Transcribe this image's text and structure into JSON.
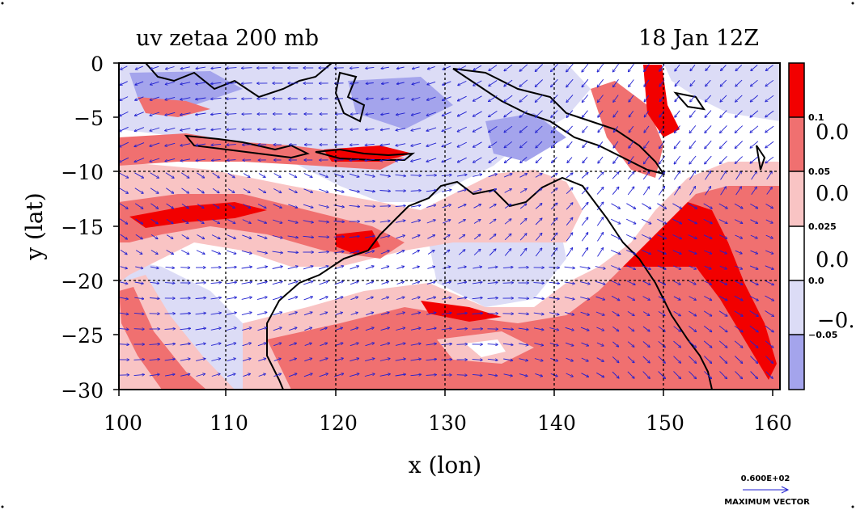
{
  "title_left": "uv zetaa 200 mb",
  "title_right": "18 Jan 12Z",
  "xlabel": "x (lon)",
  "ylabel": "y (lat)",
  "x_ticks": [
    "100",
    "110",
    "120",
    "130",
    "140",
    "150",
    "160"
  ],
  "y_ticks": [
    "0",
    "−5",
    "−10",
    "−15",
    "−20",
    "−25",
    "−30"
  ],
  "colorbar": {
    "colors": [
      "#f20000",
      "#f07070",
      "#f9c4c4",
      "#ffffff",
      "#dcdcf6",
      "#a4a4ec"
    ],
    "labels": [
      "0.1",
      "0.05",
      "0.025",
      "0.0",
      "−0.05"
    ],
    "cut_labels": [
      "0.0",
      "0.0",
      "0.0",
      "−0."
    ]
  },
  "vector_key": {
    "value": "0.600E+02",
    "label": "MAXIMUM VECTOR"
  },
  "chart_data": {
    "type": "heatmap",
    "title": "uv zetaa 200 mb",
    "subtitle": "18 Jan 12Z",
    "xlabel": "x (lon)",
    "ylabel": "y (lat)",
    "xlim": [
      100,
      160
    ],
    "ylim": [
      -30,
      0
    ],
    "grid": true,
    "contour_levels": [
      -0.05,
      0.0,
      0.025,
      0.05,
      0.1
    ],
    "colorbar_placement": "right",
    "features": [
      "vorticity shading (red positive, blue negative)",
      "wind vectors",
      "coastlines"
    ]
  }
}
